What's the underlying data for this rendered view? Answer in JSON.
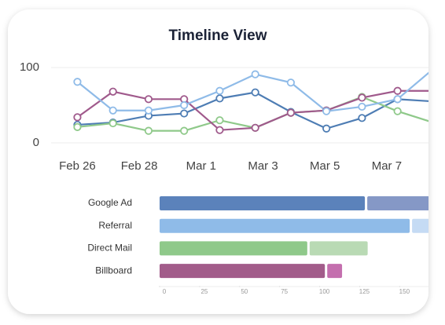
{
  "chart_data": [
    {
      "type": "line",
      "title": "Timeline View",
      "x": [
        0,
        1.15,
        2.3,
        3.45,
        4.6,
        5.75,
        6.9,
        8.05,
        9.2,
        10.35,
        11.5
      ],
      "xlim": [
        -0.85,
        11.35
      ],
      "xticks": [
        {
          "value": 0,
          "label": "Feb 26"
        },
        {
          "value": 2,
          "label": "Feb 28"
        },
        {
          "value": 4,
          "label": "Mar 1"
        },
        {
          "value": 6,
          "label": "Mar 3"
        },
        {
          "value": 8,
          "label": "Mar 5"
        },
        {
          "value": 10,
          "label": "Mar 7"
        }
      ],
      "ylim": [
        0,
        100
      ],
      "yticks": [
        0,
        100
      ],
      "grid": true,
      "series": [
        {
          "color": "#4e7db4",
          "values": [
            24,
            27,
            36,
            39,
            59,
            67,
            41,
            19,
            33,
            58,
            55
          ]
        },
        {
          "color": "#8fc98a",
          "values": [
            21,
            26,
            16,
            16,
            30,
            20,
            40,
            43,
            61,
            42,
            27
          ]
        },
        {
          "color": "#a05a8c",
          "values": [
            34,
            68,
            58,
            58,
            17,
            20,
            40,
            43,
            60,
            69,
            69
          ]
        },
        {
          "color": "#8fbbe8",
          "values": [
            81,
            43,
            43,
            50,
            69,
            91,
            80,
            42,
            48,
            58,
            98
          ]
        }
      ]
    },
    {
      "type": "bar",
      "orientation": "horizontal",
      "stacked": true,
      "categories": [
        "Google Ad",
        "Referral",
        "Direct Mail",
        "Billboard"
      ],
      "xlim": [
        0,
        168
      ],
      "xticks": [
        0,
        25,
        50,
        75,
        100,
        125,
        150
      ],
      "series": [
        {
          "colors": [
            "#5b82bb",
            "#8fbbe8",
            "#8fc98a",
            "#a25c8a"
          ],
          "values": [
            129,
            157,
            93,
            104
          ]
        },
        {
          "colors": [
            "#8598c6",
            "#c5dbf4",
            "#b9dab4",
            "#c46fae"
          ],
          "values": [
            45,
            20,
            37,
            10
          ]
        }
      ]
    }
  ]
}
